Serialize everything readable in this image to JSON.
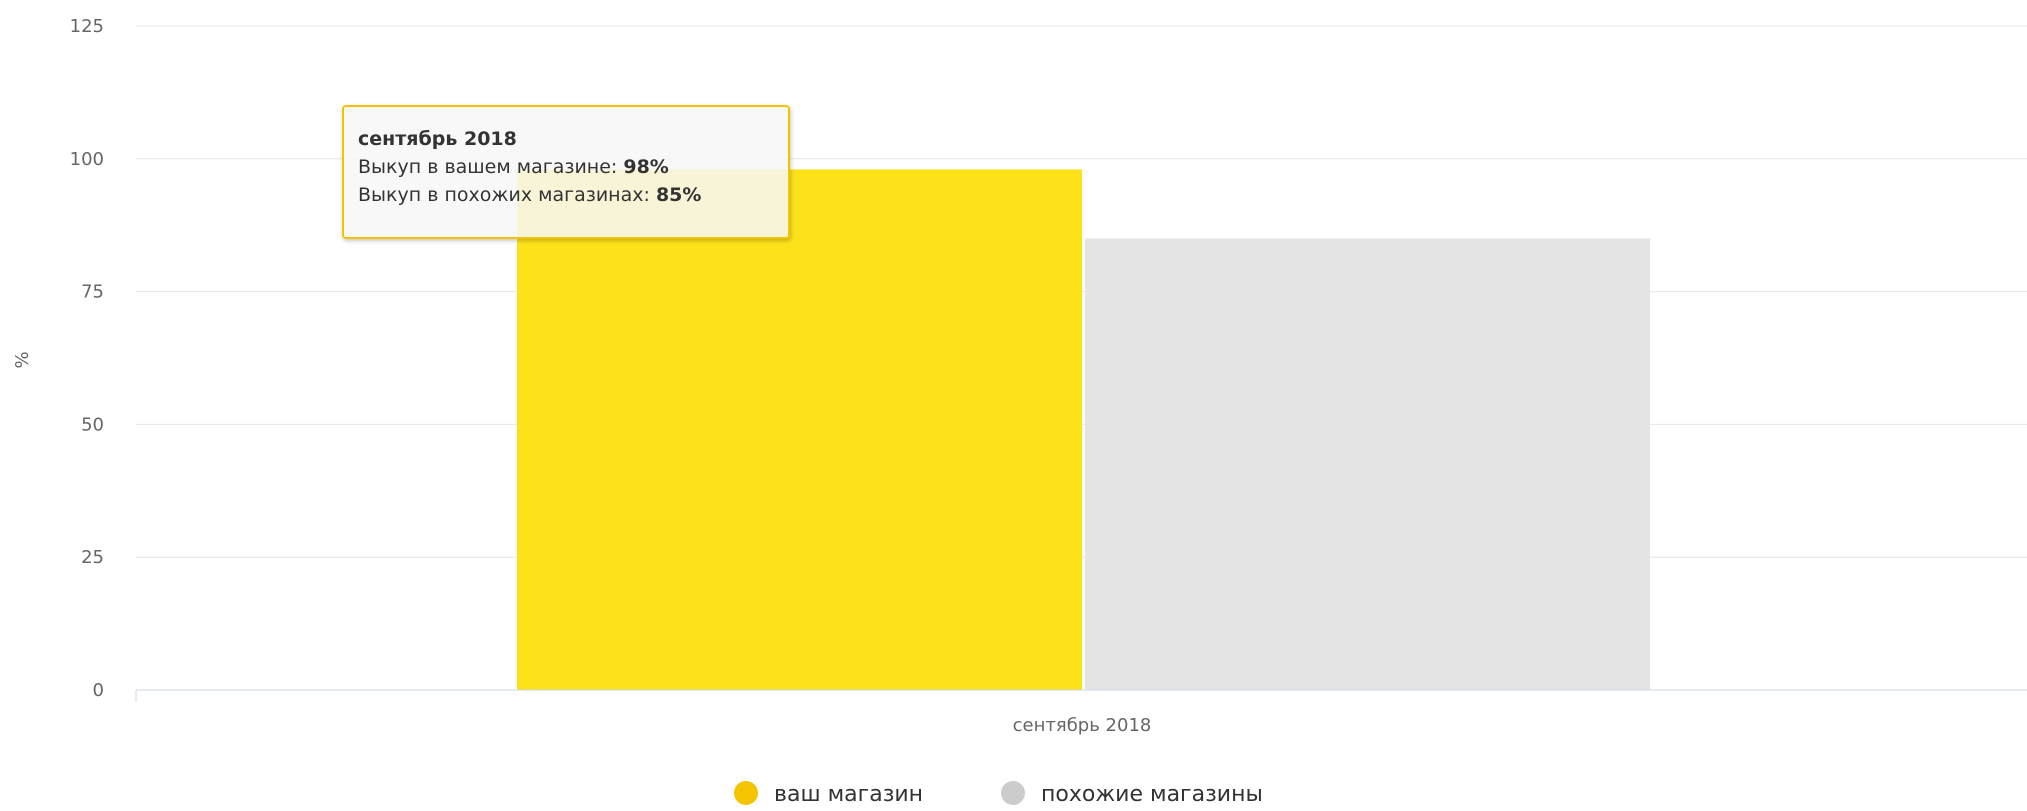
{
  "chart_data": {
    "type": "bar",
    "categories": [
      "сентябрь 2018"
    ],
    "series": [
      {
        "name": "ваш магазин",
        "values": [
          98
        ],
        "color": "#fde21a"
      },
      {
        "name": "похожие магазины",
        "values": [
          85
        ],
        "color": "#e4e4e4"
      }
    ],
    "ylabel": "%",
    "ylim": [
      0,
      125
    ],
    "yticks": [
      "0",
      "25",
      "50",
      "75",
      "100",
      "125"
    ],
    "grid": true,
    "legend_position": "bottom",
    "legend_marker_colors": [
      "#f5c400",
      "#cccccc"
    ]
  },
  "tooltip": {
    "title": "сентябрь 2018",
    "line1_label": "Выкуп в вашем магазине: ",
    "line1_value": "98%",
    "line2_label": "Выкуп в похожих магазинах: ",
    "line2_value": "85%"
  },
  "legend": {
    "item1": "ваш магазин",
    "item2": "похожие магазины"
  }
}
